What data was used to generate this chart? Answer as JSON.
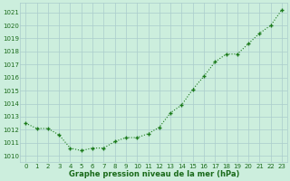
{
  "hours": [
    0,
    1,
    2,
    3,
    4,
    5,
    6,
    7,
    8,
    9,
    10,
    11,
    12,
    13,
    14,
    15,
    16,
    17,
    18,
    19,
    20,
    21,
    22,
    23
  ],
  "pressure": [
    1012.5,
    1012.1,
    1012.1,
    1011.6,
    1010.6,
    1010.4,
    1010.6,
    1010.6,
    1011.1,
    1011.4,
    1011.4,
    1011.7,
    1012.2,
    1013.3,
    1013.9,
    1015.1,
    1016.1,
    1017.2,
    1017.8,
    1017.8,
    1018.6,
    1019.4,
    1020.0,
    1021.2
  ],
  "line_color": "#1a7a1a",
  "marker_color": "#1a7a1a",
  "bg_color": "#cceedd",
  "grid_color": "#aacccc",
  "xlabel": "Graphe pression niveau de la mer (hPa)",
  "xlabel_color": "#1a6a1a",
  "tick_color": "#1a6a1a",
  "ylim_min": 1009.5,
  "ylim_max": 1021.75,
  "yticks": [
    1010,
    1011,
    1012,
    1013,
    1014,
    1015,
    1016,
    1017,
    1018,
    1019,
    1020,
    1021
  ],
  "tick_fontsize": 5.0,
  "xlabel_fontsize": 6.0,
  "marker_size": 3.5,
  "line_width": 0.8
}
